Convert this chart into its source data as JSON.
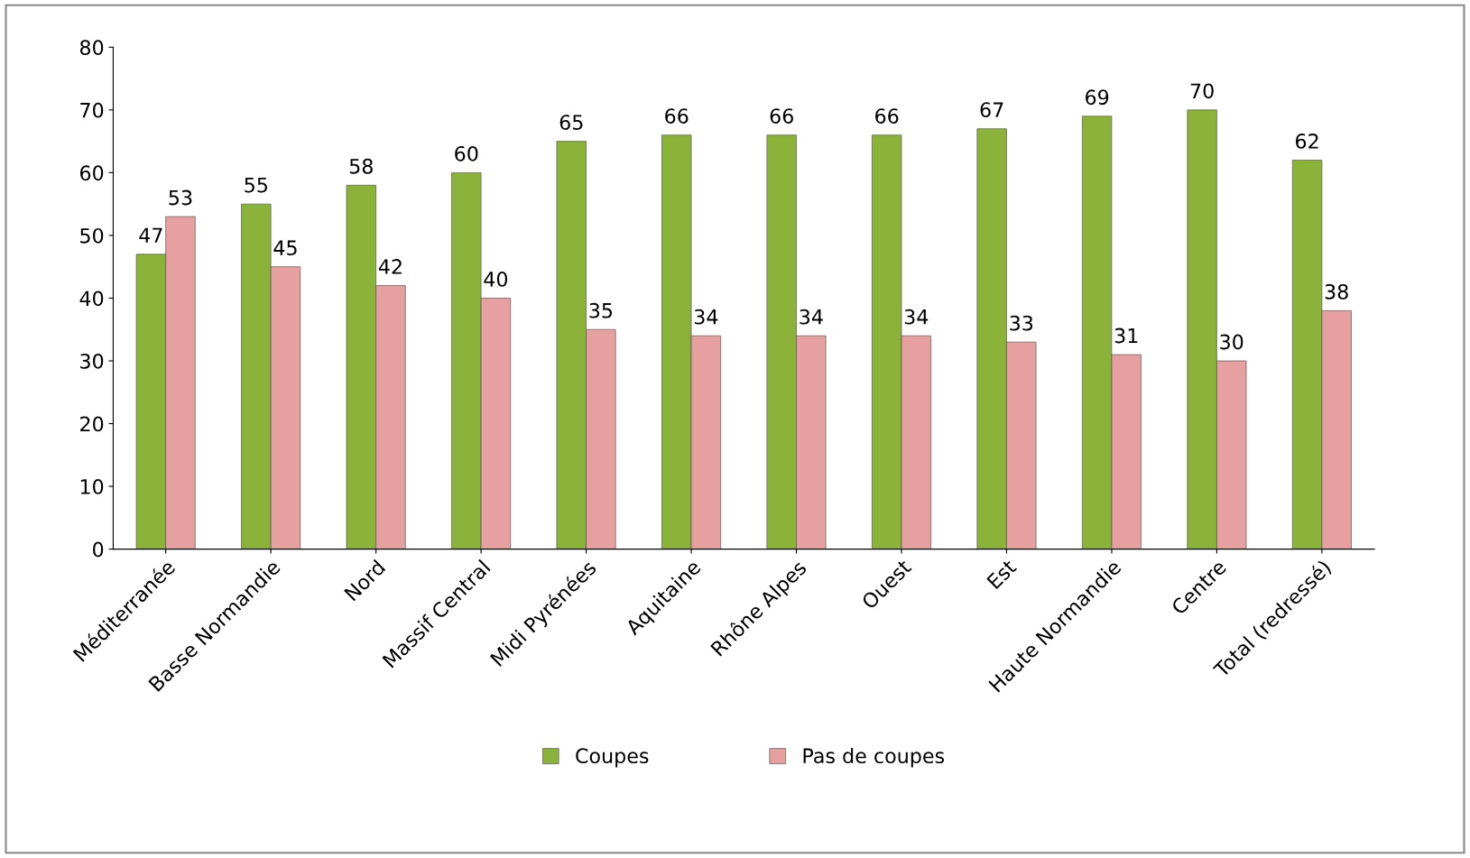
{
  "chart_data": {
    "type": "bar",
    "categories": [
      "Méditerranée",
      "Basse Normandie",
      "Nord",
      "Massif Central",
      "Midi Pyrénées",
      "Aquitaine",
      "Rhône Alpes",
      "Ouest",
      "Est",
      "Haute Normandie",
      "Centre",
      "Total (redressé)"
    ],
    "series": [
      {
        "name": "Coupes",
        "color": "#8bb33a",
        "values": [
          47,
          55,
          58,
          60,
          65,
          66,
          66,
          66,
          67,
          69,
          70,
          62
        ]
      },
      {
        "name": "Pas de coupes",
        "color": "#e6a0a0",
        "values": [
          53,
          45,
          42,
          40,
          35,
          34,
          34,
          34,
          33,
          31,
          30,
          38
        ]
      }
    ],
    "ylim": [
      0,
      80
    ],
    "yticks": [
      0,
      10,
      20,
      30,
      40,
      50,
      60,
      70,
      80
    ],
    "data_labels": true,
    "legend": "bottom",
    "grid": false
  }
}
